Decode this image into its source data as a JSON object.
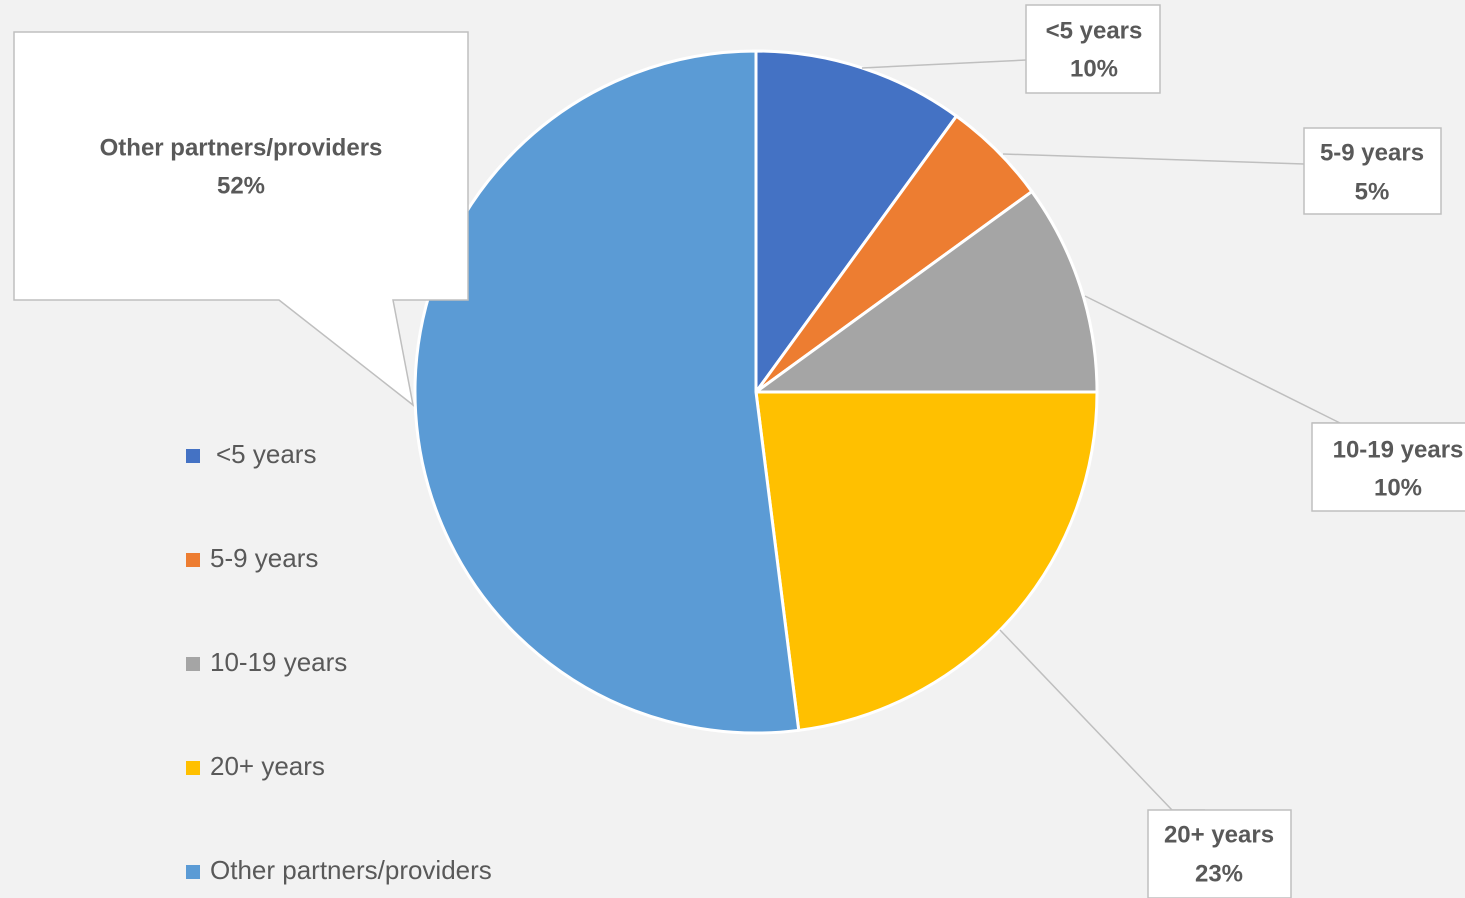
{
  "chart_data": {
    "type": "pie",
    "categories": [
      "<5 years",
      "5-9 years",
      "10-19 years",
      "20+ years",
      "Other partners/providers"
    ],
    "values": [
      10,
      5,
      10,
      23,
      52
    ],
    "value_labels": [
      "10%",
      "5%",
      "10%",
      "23%",
      "52%"
    ],
    "colors": [
      "#4472c4",
      "#ed7d31",
      "#a5a5a5",
      "#ffc000",
      "#5b9bd5"
    ],
    "legend": "left"
  }
}
